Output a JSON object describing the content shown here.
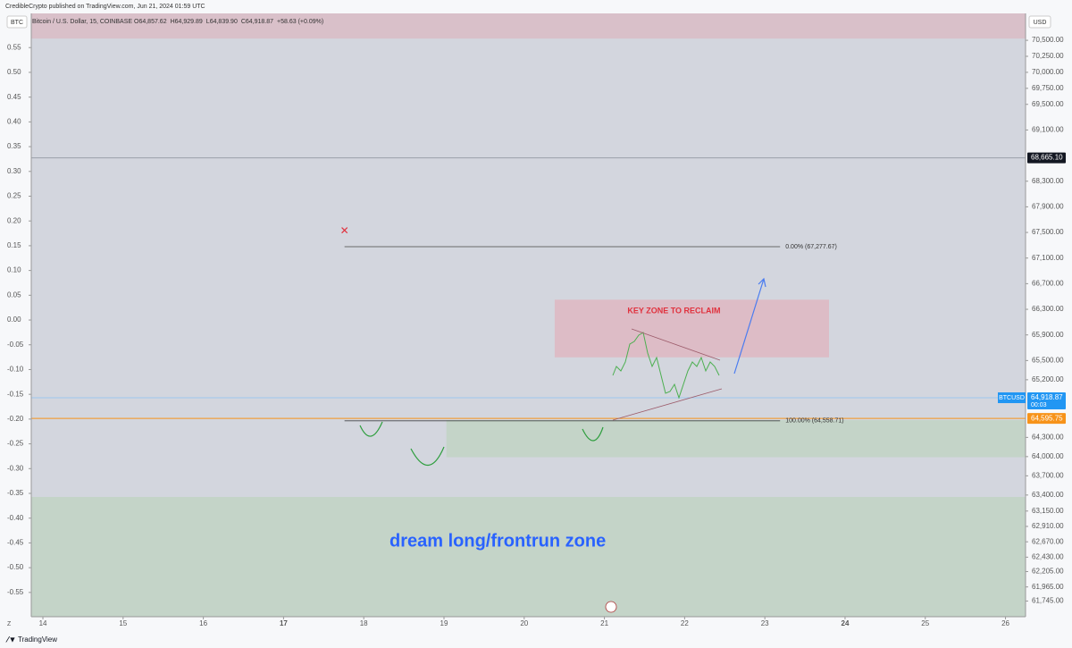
{
  "header": {
    "publisher": "CredibleCrypto published on TradingView.com, Jun 21, 2024 01:59 UTC"
  },
  "footer": {
    "brand": "TradingView"
  },
  "chart_data": {
    "type": "line",
    "symbol_box": "BTC",
    "currency_box": "USD",
    "axis_corner": "Z",
    "legend_text": "Bitcoin / U.S. Dollar, 15, COINBASE",
    "ohlc_labels": [
      "O64,857.62",
      "H64,929.89",
      "L64,839.90",
      "C64,918.87",
      "+58.63 (+0.09%)"
    ],
    "series": [
      {
        "name": "BTCUSD",
        "color": "#2a2e39",
        "x": [
          13.86,
          13.97,
          14.13,
          14.3,
          14.47,
          14.56,
          14.62,
          14.69,
          14.74,
          14.8,
          14.89,
          15.02,
          15.14,
          15.3,
          15.47,
          15.64,
          15.8,
          15.92,
          16.08,
          16.25,
          16.38,
          16.47,
          16.64,
          16.81,
          16.94,
          17.01,
          17.08,
          17.2,
          17.31,
          17.42,
          17.53,
          17.64,
          17.7,
          17.76,
          17.81,
          17.86,
          17.94,
          18.01,
          18.06,
          18.1,
          18.17,
          18.25,
          18.37,
          18.48,
          18.57,
          18.64,
          18.72,
          18.79,
          18.83,
          18.88,
          18.94,
          19.03,
          19.14,
          19.26,
          19.37,
          19.48,
          19.59,
          19.7,
          19.81,
          19.92,
          20.04,
          20.15,
          20.24,
          20.31,
          20.37,
          20.42,
          20.46,
          20.5,
          20.56,
          20.61,
          20.68,
          20.76,
          20.84,
          20.93,
          21.0,
          21.04,
          21.09
        ],
        "values": [
          66590,
          66800,
          66870,
          67050,
          67080,
          67220,
          66800,
          65550,
          65130,
          65550,
          65970,
          66110,
          66180,
          66220,
          66250,
          66130,
          66040,
          66180,
          66250,
          66270,
          66380,
          66590,
          66590,
          66520,
          66690,
          66800,
          66450,
          66310,
          66110,
          65760,
          65550,
          65270,
          65620,
          67080,
          66940,
          66590,
          66450,
          65970,
          65130,
          64710,
          65410,
          65760,
          65620,
          65270,
          64920,
          64430,
          64570,
          64430,
          64150,
          64570,
          65130,
          65270,
          65550,
          65550,
          65270,
          65130,
          64990,
          64920,
          64780,
          64990,
          64990,
          65130,
          65410,
          65690,
          65900,
          66310,
          66410,
          66110,
          65550,
          64990,
          64570,
          64990,
          64990,
          64990,
          64850,
          64680,
          64920
        ]
      }
    ],
    "xlim": [
      13.855,
      26.25
    ],
    "xticks": [
      14,
      15,
      16,
      17,
      18,
      19,
      20,
      21,
      22,
      23,
      24,
      25,
      26
    ],
    "bold_xticks": [
      17,
      24
    ],
    "ylim": [
      61500,
      70920
    ],
    "yticks": [
      {
        "value": 70500,
        "label": "70,500.00"
      },
      {
        "value": 70250,
        "label": "70,250.00"
      },
      {
        "value": 70000,
        "label": "70,000.00"
      },
      {
        "value": 69750,
        "label": "69,750.00"
      },
      {
        "value": 69500,
        "label": "69,500.00"
      },
      {
        "value": 69100,
        "label": "69,100.00"
      },
      {
        "value": 68300,
        "label": "68,300.00"
      },
      {
        "value": 67900,
        "label": "67,900.00"
      },
      {
        "value": 67500,
        "label": "67,500.00"
      },
      {
        "value": 67100,
        "label": "67,100.00"
      },
      {
        "value": 66700,
        "label": "66,700.00"
      },
      {
        "value": 66300,
        "label": "66,300.00"
      },
      {
        "value": 65900,
        "label": "65,900.00"
      },
      {
        "value": 65500,
        "label": "65,500.00"
      },
      {
        "value": 65200,
        "label": "65,200.00"
      },
      {
        "value": 64300,
        "label": "64,300.00"
      },
      {
        "value": 64000,
        "label": "64,000.00"
      },
      {
        "value": 63700,
        "label": "63,700.00"
      },
      {
        "value": 63400,
        "label": "63,400.00"
      },
      {
        "value": 63150,
        "label": "63,150.00"
      },
      {
        "value": 62910,
        "label": "62,910.00"
      },
      {
        "value": 62670,
        "label": "62,670.00"
      },
      {
        "value": 62430,
        "label": "62,430.00"
      },
      {
        "value": 62205,
        "label": "62,205.00"
      },
      {
        "value": 61965,
        "label": "61,965.00"
      },
      {
        "value": 61745,
        "label": "61,745.00"
      }
    ],
    "y2lim": [
      -0.599,
      0.619
    ],
    "y2ticks": [
      0.55,
      {
        "value": 0.5,
        "label": "0.50"
      },
      0.45,
      {
        "value": 0.4,
        "label": "0.40"
      },
      0.35,
      {
        "value": 0.3,
        "label": "0.30"
      },
      0.25,
      {
        "value": 0.2,
        "label": "0.20"
      },
      0.15,
      {
        "value": 0.1,
        "label": "0.10"
      },
      0.05,
      {
        "value": 0,
        "label": "0.00"
      },
      -0.05,
      {
        "value": -0.1,
        "label": "-0.10"
      },
      -0.15,
      {
        "value": -0.2,
        "label": "-0.20"
      },
      -0.25,
      {
        "value": -0.3,
        "label": "-0.30"
      },
      -0.35,
      {
        "value": -0.4,
        "label": "-0.40"
      },
      -0.45,
      {
        "value": -0.5,
        "label": "-0.50"
      },
      -0.55
    ],
    "zones": [
      {
        "y": [
          70527,
          70920
        ],
        "color": "#d9c0c9"
      },
      {
        "y": [
          65550,
          66450
        ],
        "x": [
          20.38,
          23.8
        ],
        "color": "#ddbcc6",
        "label": "KEY ZONE TO RECLAIM",
        "label_color": "#e0313d"
      },
      {
        "y": [
          63990,
          64570
        ],
        "x": [
          19.03,
          26.25
        ],
        "color": "#c4d4c8"
      },
      {
        "y": [
          61500,
          63370
        ],
        "color": "#c4d4c8",
        "label": "dream long/frontrun zone",
        "label_color": "#2962ff"
      }
    ],
    "fib_x": [
      17.76,
      23.19
    ],
    "fib_levels": [
      {
        "value": 67277.67,
        "label": "0.00% (67,277.67)"
      },
      {
        "value": 64558.71,
        "label": "100.00% (64,558.71)"
      }
    ],
    "levels": [
      {
        "value": 68665.1,
        "label": "68,665.10",
        "color": "#9aa0aa",
        "tag_color": "#131722"
      },
      {
        "value": 64918.87,
        "label": "64,918.87",
        "color": "#9cc8ee",
        "tag_color": "#2196f3",
        "sublabel": "00:03"
      },
      {
        "value": 64595.75,
        "label": "64,595.75",
        "color": "#f7931a",
        "tag_color": "#f7931a"
      }
    ],
    "marker": {
      "label": "✕",
      "x": 17.76,
      "value": 67515,
      "color": "#e0313d"
    }
  }
}
